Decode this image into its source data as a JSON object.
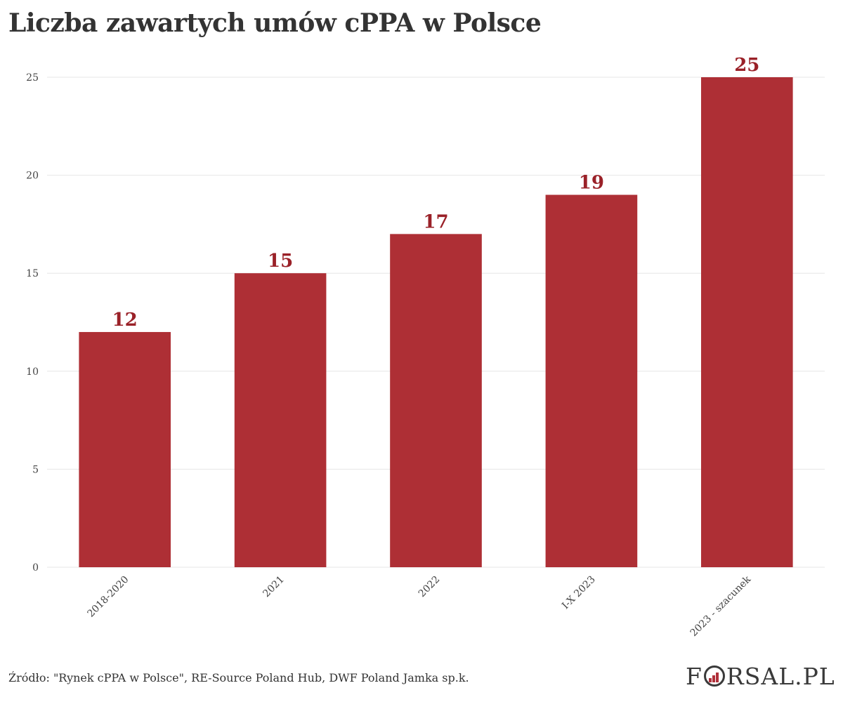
{
  "title": "Liczba zawartych umów cPPA w Polsce",
  "source": "Źródło: \"Rynek cPPA w Polsce\", RE-Source Poland Hub, DWF Poland Jamka sp.k.",
  "logo": {
    "first": "F",
    "rest": "RSAL.PL",
    "accent_color": "#b0303a"
  },
  "chart_data": {
    "type": "bar",
    "title": "Liczba zawartych umów cPPA w Polsce",
    "xlabel": "",
    "ylabel": "",
    "categories": [
      "2018-2020",
      "2021",
      "2022",
      "I-X 2023",
      "2023 - szacunek"
    ],
    "values": [
      12,
      15,
      17,
      19,
      25
    ],
    "ylim": [
      0,
      25
    ],
    "yticks": [
      0,
      5,
      10,
      15,
      20,
      25
    ],
    "grid": true,
    "bar_color": "#ae2f35",
    "label_color": "#9a2128"
  }
}
